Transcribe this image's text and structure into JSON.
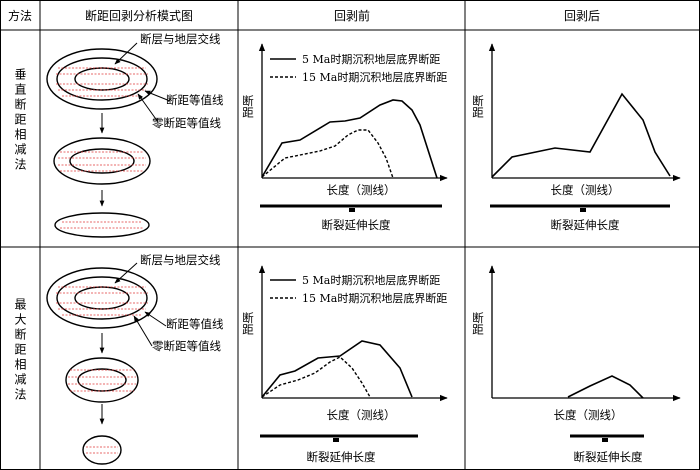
{
  "header": {
    "col_method": "方法",
    "col_model": "断距回剥分析模式图",
    "col_before": "回剥前",
    "col_after": "回剥后"
  },
  "rows": [
    {
      "method": "垂直断距相减法",
      "model_labels": {
        "fault_intersection": "断层与地层交线",
        "throw_contour": "断距等值线",
        "zero_contour": "零断距等值线"
      },
      "before": {
        "ylabel": "断距",
        "xlabel": "长度（测线）",
        "bar_label": "断裂延伸长度",
        "legend_solid": "5 Ma时期沉积地层底界断距",
        "legend_dashed": "15 Ma时期沉积地层底界断距"
      },
      "after": {
        "ylabel": "断距",
        "xlabel": "长度（测线）",
        "bar_label": "断裂延伸长度"
      }
    },
    {
      "method": "最大断距相减法",
      "model_labels": {
        "fault_intersection": "断层与地层交线",
        "throw_contour": "断距等值线",
        "zero_contour": "零断距等值线"
      },
      "before": {
        "ylabel": "断距",
        "xlabel": "长度（测线）",
        "bar_label": "断裂延伸长度",
        "legend_solid": "5 Ma时期沉积地层底界断距",
        "legend_dashed": "15 Ma时期沉积地层底界断距"
      },
      "after": {
        "ylabel": "断距",
        "xlabel": "长度（测线）",
        "bar_label": "断裂延伸长度"
      }
    }
  ]
}
